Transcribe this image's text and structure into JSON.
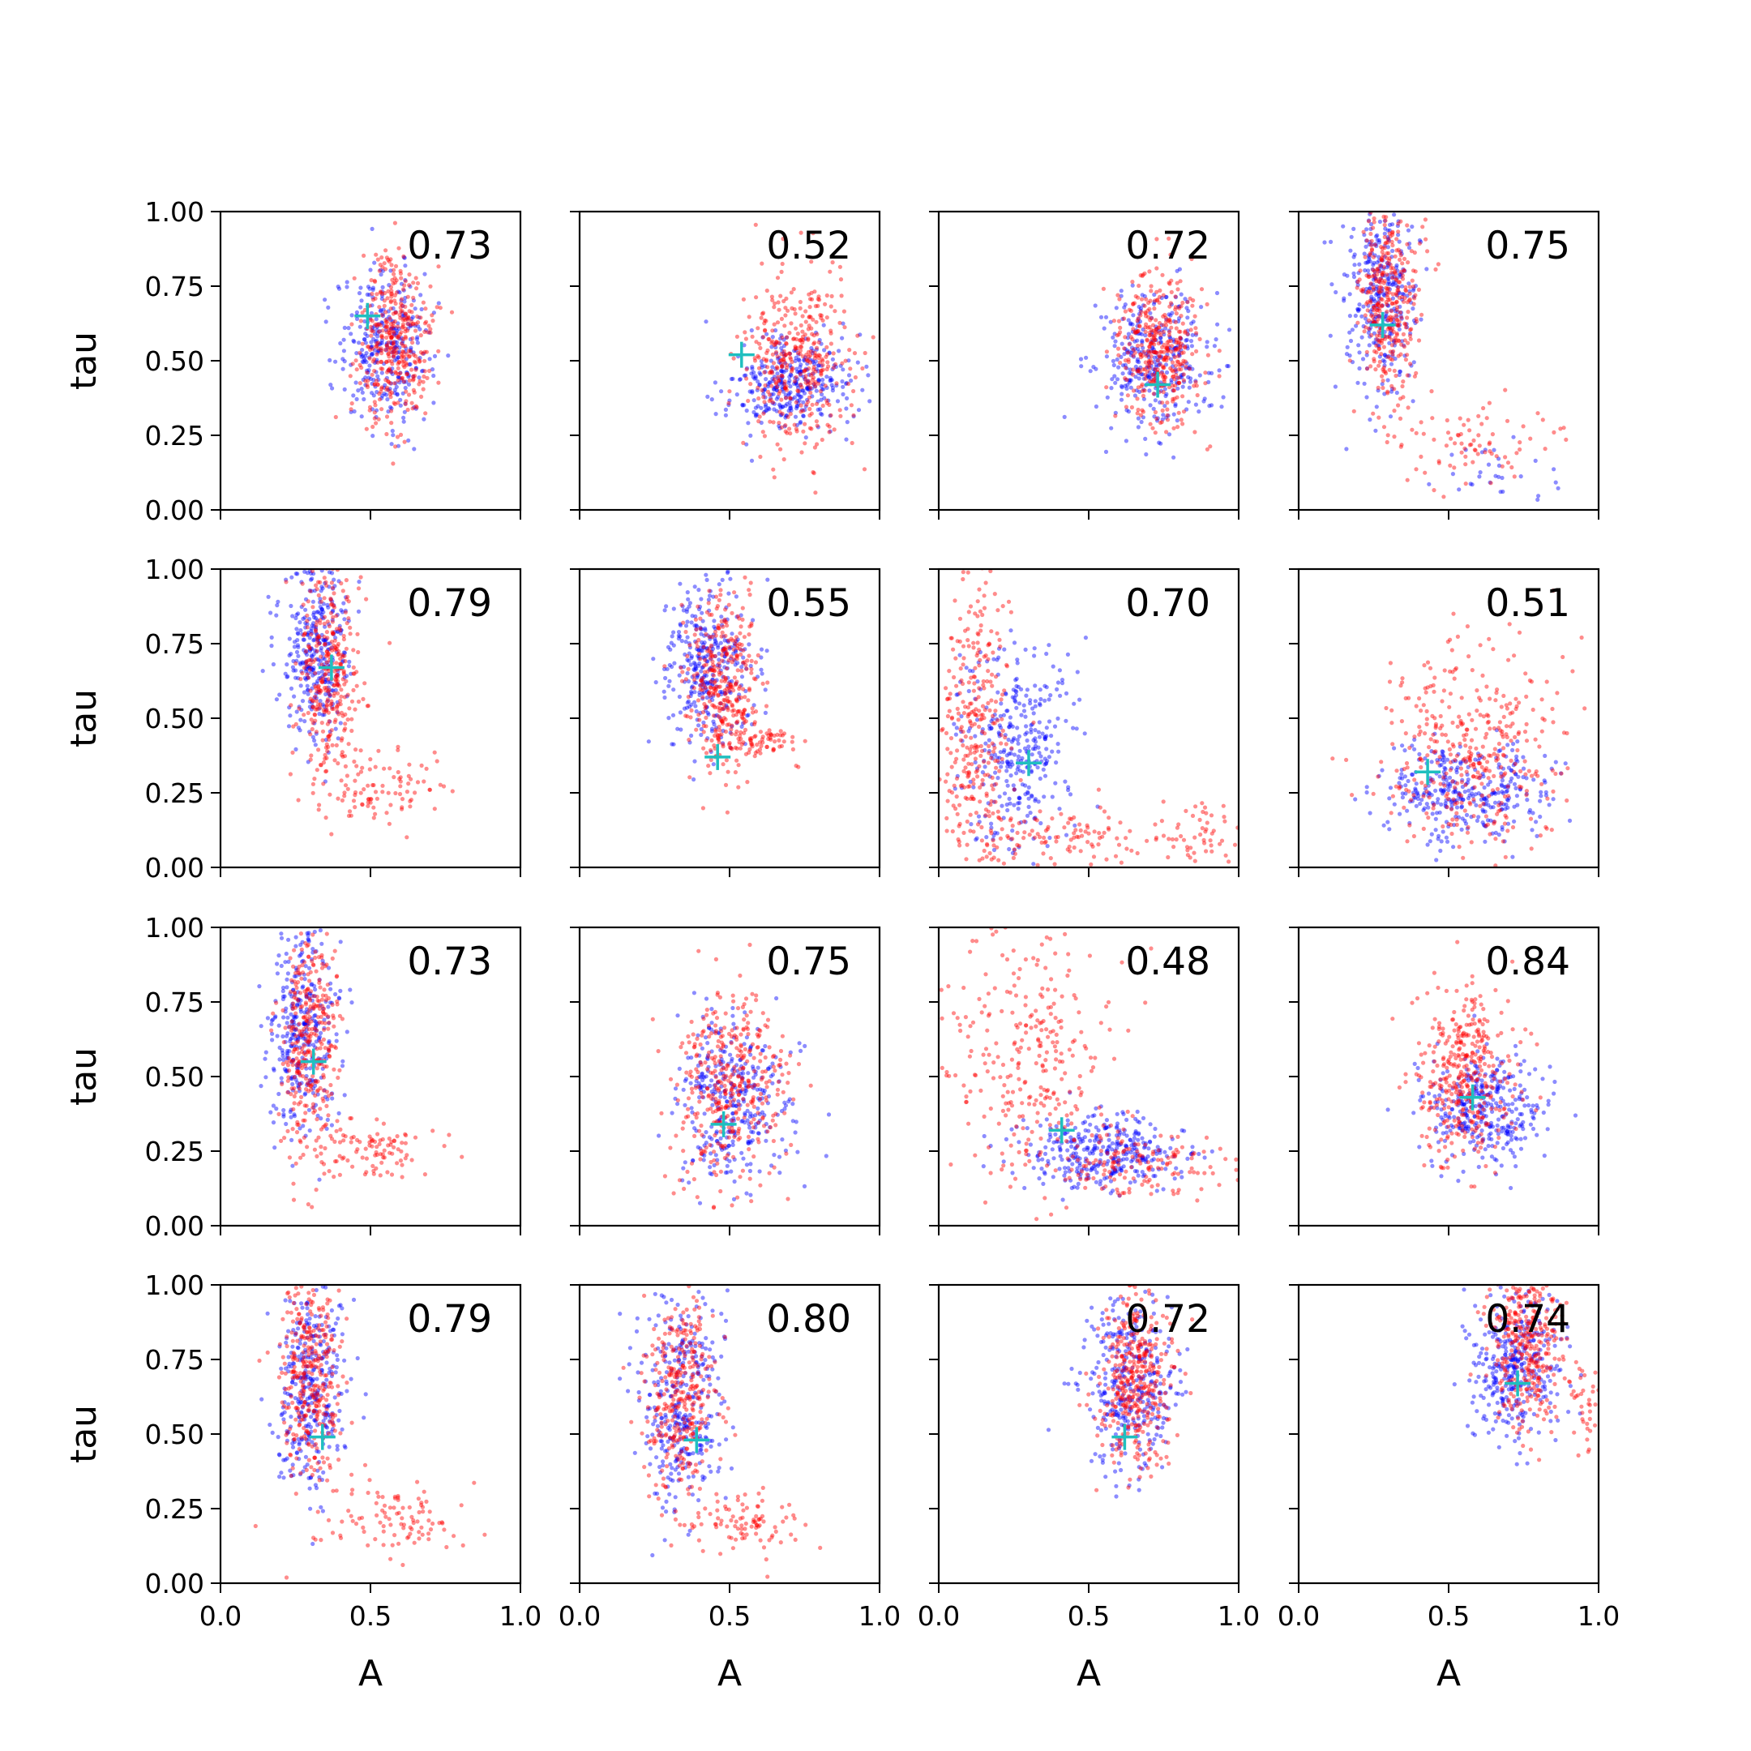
{
  "figure": {
    "rows": 4,
    "cols": 4,
    "colors": {
      "series_a": "#0000ff",
      "series_b": "#ff0000",
      "marker": "#1fbfbf",
      "axes": "#000000"
    },
    "xlabel": "A",
    "ylabel": "tau",
    "xticks": [
      "0.0",
      "0.5",
      "1.0"
    ],
    "yticks": [
      "0.00",
      "0.25",
      "0.50",
      "0.75",
      "1.00"
    ]
  },
  "chart_data": [
    {
      "type": "scatter",
      "annotation": "0.73",
      "xlim": [
        0,
        1
      ],
      "ylim": [
        0,
        1
      ],
      "marker": {
        "x": 0.49,
        "y": 0.65
      },
      "clusters": {
        "blue": [
          {
            "cx": 0.55,
            "cy": 0.55,
            "sx": 0.08,
            "sy": 0.13,
            "n": 320
          }
        ],
        "red": [
          {
            "cx": 0.58,
            "cy": 0.57,
            "sx": 0.06,
            "sy": 0.14,
            "n": 380
          }
        ]
      }
    },
    {
      "type": "scatter",
      "annotation": "0.52",
      "xlim": [
        0,
        1
      ],
      "ylim": [
        0,
        1
      ],
      "marker": {
        "x": 0.54,
        "y": 0.52
      },
      "clusters": {
        "blue": [
          {
            "cx": 0.7,
            "cy": 0.42,
            "sx": 0.1,
            "sy": 0.08,
            "n": 340
          }
        ],
        "red": [
          {
            "cx": 0.72,
            "cy": 0.5,
            "sx": 0.09,
            "sy": 0.14,
            "n": 380
          }
        ]
      }
    },
    {
      "type": "scatter",
      "annotation": "0.72",
      "xlim": [
        0,
        1
      ],
      "ylim": [
        0,
        1
      ],
      "marker": {
        "x": 0.73,
        "y": 0.42
      },
      "clusters": {
        "blue": [
          {
            "cx": 0.72,
            "cy": 0.5,
            "sx": 0.1,
            "sy": 0.12,
            "n": 340
          }
        ],
        "red": [
          {
            "cx": 0.74,
            "cy": 0.52,
            "sx": 0.07,
            "sy": 0.13,
            "n": 380
          }
        ]
      }
    },
    {
      "type": "scatter",
      "annotation": "0.75",
      "xlim": [
        0,
        1
      ],
      "ylim": [
        0,
        1
      ],
      "marker": {
        "x": 0.28,
        "y": 0.62
      },
      "clusters": {
        "blue": [
          {
            "cx": 0.28,
            "cy": 0.75,
            "sx": 0.06,
            "sy": 0.17,
            "n": 340
          },
          {
            "cx": 0.7,
            "cy": 0.12,
            "sx": 0.12,
            "sy": 0.05,
            "n": 30
          }
        ],
        "red": [
          {
            "cx": 0.3,
            "cy": 0.72,
            "sx": 0.05,
            "sy": 0.18,
            "n": 360
          },
          {
            "cx": 0.55,
            "cy": 0.22,
            "sx": 0.13,
            "sy": 0.07,
            "n": 80
          }
        ]
      }
    },
    {
      "type": "scatter",
      "annotation": "0.79",
      "xlim": [
        0,
        1
      ],
      "ylim": [
        0,
        1
      ],
      "marker": {
        "x": 0.37,
        "y": 0.67
      },
      "clusters": {
        "blue": [
          {
            "cx": 0.32,
            "cy": 0.72,
            "sx": 0.06,
            "sy": 0.15,
            "n": 340
          }
        ],
        "red": [
          {
            "cx": 0.36,
            "cy": 0.64,
            "sx": 0.05,
            "sy": 0.18,
            "n": 340
          },
          {
            "cx": 0.55,
            "cy": 0.28,
            "sx": 0.1,
            "sy": 0.06,
            "n": 90
          }
        ]
      }
    },
    {
      "type": "scatter",
      "annotation": "0.55",
      "xlim": [
        0,
        1
      ],
      "ylim": [
        0,
        1
      ],
      "marker": {
        "x": 0.46,
        "y": 0.37
      },
      "clusters": {
        "blue": [
          {
            "cx": 0.42,
            "cy": 0.68,
            "sx": 0.07,
            "sy": 0.14,
            "n": 340
          }
        ],
        "red": [
          {
            "cx": 0.48,
            "cy": 0.62,
            "sx": 0.06,
            "sy": 0.14,
            "n": 360
          },
          {
            "cx": 0.62,
            "cy": 0.42,
            "sx": 0.05,
            "sy": 0.03,
            "n": 60
          }
        ]
      }
    },
    {
      "type": "scatter",
      "annotation": "0.70",
      "xlim": [
        0,
        1
      ],
      "ylim": [
        0,
        1
      ],
      "marker": {
        "x": 0.3,
        "y": 0.35
      },
      "clusters": {
        "blue": [
          {
            "cx": 0.25,
            "cy": 0.4,
            "sx": 0.1,
            "sy": 0.18,
            "n": 340
          }
        ],
        "red": [
          {
            "cx": 0.12,
            "cy": 0.45,
            "sx": 0.06,
            "sy": 0.25,
            "n": 300
          },
          {
            "cx": 0.4,
            "cy": 0.1,
            "sx": 0.18,
            "sy": 0.06,
            "n": 120
          },
          {
            "cx": 0.88,
            "cy": 0.12,
            "sx": 0.07,
            "sy": 0.07,
            "n": 50
          }
        ]
      }
    },
    {
      "type": "scatter",
      "annotation": "0.51",
      "xlim": [
        0,
        1
      ],
      "ylim": [
        0,
        1
      ],
      "marker": {
        "x": 0.43,
        "y": 0.32
      },
      "clusters": {
        "blue": [
          {
            "cx": 0.55,
            "cy": 0.25,
            "sx": 0.14,
            "sy": 0.08,
            "n": 340
          }
        ],
        "red": [
          {
            "cx": 0.58,
            "cy": 0.4,
            "sx": 0.14,
            "sy": 0.18,
            "n": 380
          }
        ]
      }
    },
    {
      "type": "scatter",
      "annotation": "0.73",
      "xlim": [
        0,
        1
      ],
      "ylim": [
        0,
        1
      ],
      "marker": {
        "x": 0.31,
        "y": 0.55
      },
      "clusters": {
        "blue": [
          {
            "cx": 0.28,
            "cy": 0.65,
            "sx": 0.06,
            "sy": 0.18,
            "n": 340
          }
        ],
        "red": [
          {
            "cx": 0.3,
            "cy": 0.62,
            "sx": 0.05,
            "sy": 0.2,
            "n": 340
          },
          {
            "cx": 0.5,
            "cy": 0.26,
            "sx": 0.1,
            "sy": 0.05,
            "n": 100
          }
        ]
      }
    },
    {
      "type": "scatter",
      "annotation": "0.75",
      "xlim": [
        0,
        1
      ],
      "ylim": [
        0,
        1
      ],
      "marker": {
        "x": 0.48,
        "y": 0.34
      },
      "clusters": {
        "blue": [
          {
            "cx": 0.52,
            "cy": 0.42,
            "sx": 0.1,
            "sy": 0.14,
            "n": 340
          }
        ],
        "red": [
          {
            "cx": 0.5,
            "cy": 0.48,
            "sx": 0.09,
            "sy": 0.16,
            "n": 380
          }
        ]
      }
    },
    {
      "type": "scatter",
      "annotation": "0.48",
      "xlim": [
        0,
        1
      ],
      "ylim": [
        0,
        1
      ],
      "marker": {
        "x": 0.41,
        "y": 0.32
      },
      "clusters": {
        "blue": [
          {
            "cx": 0.55,
            "cy": 0.25,
            "sx": 0.13,
            "sy": 0.06,
            "n": 340
          }
        ],
        "red": [
          {
            "cx": 0.3,
            "cy": 0.55,
            "sx": 0.14,
            "sy": 0.22,
            "n": 300
          },
          {
            "cx": 0.65,
            "cy": 0.2,
            "sx": 0.14,
            "sy": 0.05,
            "n": 140
          }
        ]
      }
    },
    {
      "type": "scatter",
      "annotation": "0.84",
      "xlim": [
        0,
        1
      ],
      "ylim": [
        0,
        1
      ],
      "marker": {
        "x": 0.58,
        "y": 0.43
      },
      "clusters": {
        "blue": [
          {
            "cx": 0.62,
            "cy": 0.4,
            "sx": 0.1,
            "sy": 0.1,
            "n": 340
          }
        ],
        "red": [
          {
            "cx": 0.56,
            "cy": 0.5,
            "sx": 0.08,
            "sy": 0.14,
            "n": 380
          }
        ]
      }
    },
    {
      "type": "scatter",
      "annotation": "0.79",
      "xlim": [
        0,
        1
      ],
      "ylim": [
        0,
        1
      ],
      "marker": {
        "x": 0.34,
        "y": 0.49
      },
      "clusters": {
        "blue": [
          {
            "cx": 0.3,
            "cy": 0.68,
            "sx": 0.06,
            "sy": 0.17,
            "n": 340
          }
        ],
        "red": [
          {
            "cx": 0.3,
            "cy": 0.68,
            "sx": 0.05,
            "sy": 0.18,
            "n": 340
          },
          {
            "cx": 0.58,
            "cy": 0.22,
            "sx": 0.12,
            "sy": 0.07,
            "n": 100
          }
        ]
      }
    },
    {
      "type": "scatter",
      "annotation": "0.80",
      "xlim": [
        0,
        1
      ],
      "ylim": [
        0,
        1
      ],
      "marker": {
        "x": 0.39,
        "y": 0.48
      },
      "clusters": {
        "blue": [
          {
            "cx": 0.34,
            "cy": 0.62,
            "sx": 0.07,
            "sy": 0.18,
            "n": 340
          }
        ],
        "red": [
          {
            "cx": 0.34,
            "cy": 0.66,
            "sx": 0.06,
            "sy": 0.18,
            "n": 340
          },
          {
            "cx": 0.55,
            "cy": 0.2,
            "sx": 0.1,
            "sy": 0.05,
            "n": 90
          }
        ]
      }
    },
    {
      "type": "scatter",
      "annotation": "0.72",
      "xlim": [
        0,
        1
      ],
      "ylim": [
        0,
        1
      ],
      "marker": {
        "x": 0.62,
        "y": 0.49
      },
      "clusters": {
        "blue": [
          {
            "cx": 0.64,
            "cy": 0.66,
            "sx": 0.08,
            "sy": 0.14,
            "n": 340
          }
        ],
        "red": [
          {
            "cx": 0.66,
            "cy": 0.68,
            "sx": 0.06,
            "sy": 0.15,
            "n": 380
          }
        ]
      }
    },
    {
      "type": "scatter",
      "annotation": "0.74",
      "xlim": [
        0,
        1
      ],
      "ylim": [
        0,
        1
      ],
      "marker": {
        "x": 0.73,
        "y": 0.67
      },
      "clusters": {
        "blue": [
          {
            "cx": 0.72,
            "cy": 0.74,
            "sx": 0.08,
            "sy": 0.12,
            "n": 340
          }
        ],
        "red": [
          {
            "cx": 0.76,
            "cy": 0.8,
            "sx": 0.06,
            "sy": 0.14,
            "n": 360
          },
          {
            "cx": 0.95,
            "cy": 0.6,
            "sx": 0.03,
            "sy": 0.08,
            "n": 40
          }
        ]
      }
    }
  ]
}
